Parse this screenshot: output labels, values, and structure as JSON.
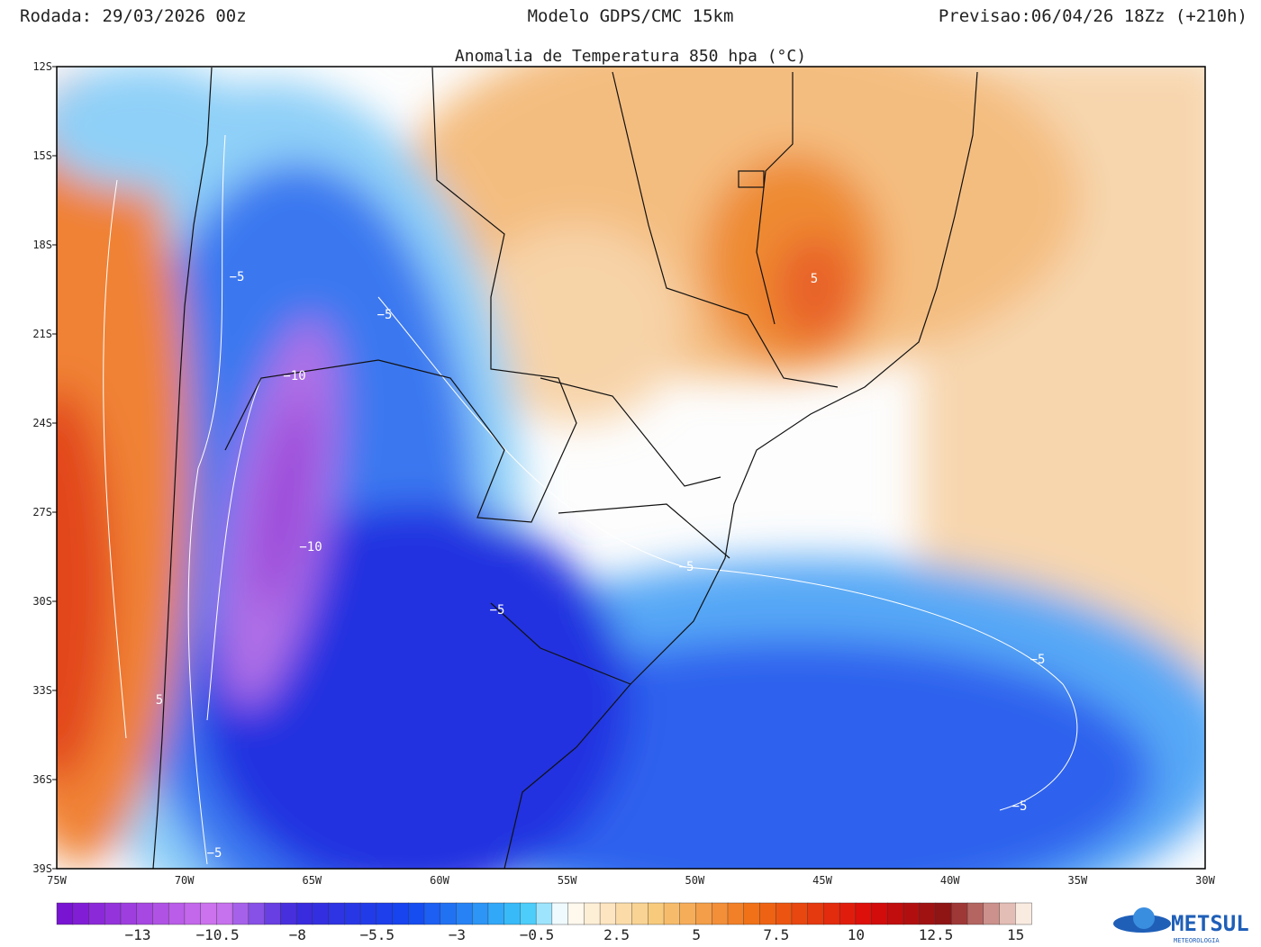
{
  "header": {
    "left": "Rodada: 29/03/2026 00z",
    "center": "Modelo GDPS/CMC 15km",
    "right": "Previsao:06/04/26 18Zz (+210h)"
  },
  "map": {
    "title": "Anomalia de Temperatura 850 hpa (°C)",
    "lat_labels": [
      "12S",
      "15S",
      "18S",
      "21S",
      "24S",
      "27S",
      "30S",
      "33S",
      "36S",
      "39S"
    ],
    "lon_labels": [
      "75W",
      "70W",
      "65W",
      "60W",
      "55W",
      "50W",
      "45W",
      "40W",
      "35W",
      "30W"
    ],
    "contour_labels": [
      "−5",
      "−5",
      "−5",
      "−5",
      "−5",
      "−5",
      "−5",
      "−10",
      "−10",
      "5",
      "5"
    ]
  },
  "colorbar": {
    "labels": [
      "−13",
      "−10.5",
      "−8",
      "−5.5",
      "−3",
      "−0.5",
      "2.5",
      "5",
      "7.5",
      "10",
      "12.5",
      "15"
    ]
  },
  "logo": {
    "name": "METSUL",
    "tagline": "METEOROLOGIA"
  }
}
